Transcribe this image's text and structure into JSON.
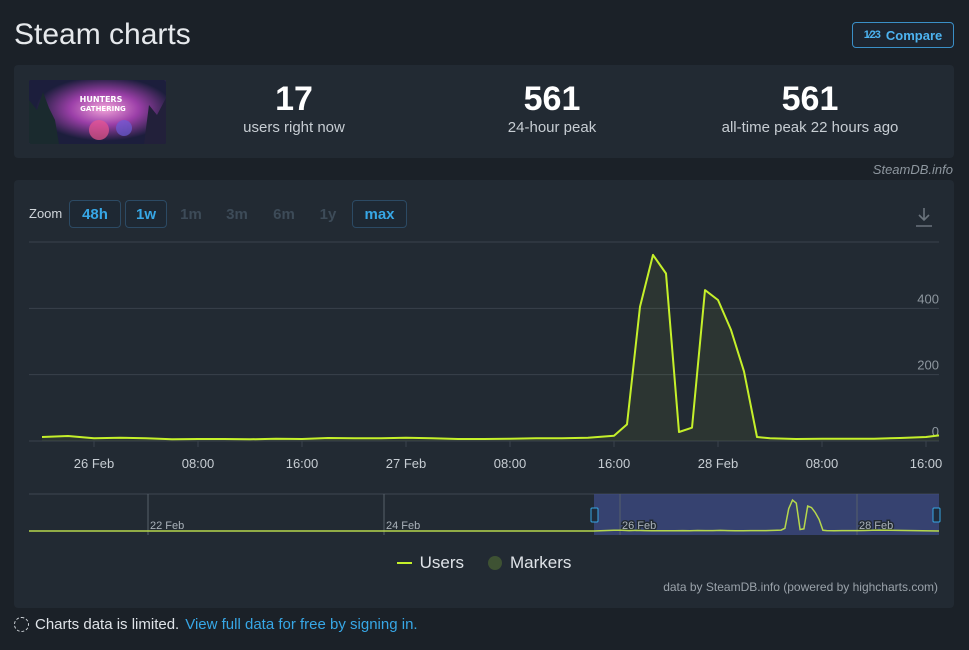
{
  "page": {
    "title": "Steam charts",
    "compare_icon": "1⁄23",
    "compare_label": "Compare"
  },
  "stats": [
    {
      "value": "17",
      "label": "users right now"
    },
    {
      "value": "561",
      "label": "24-hour peak"
    },
    {
      "value": "561",
      "label": "all-time peak 22 hours ago"
    }
  ],
  "source_note": "SteamDB.info",
  "zoom": {
    "label": "Zoom",
    "buttons": [
      {
        "label": "48h",
        "active": true
      },
      {
        "label": "1w",
        "active": true
      },
      {
        "label": "1m",
        "active": false
      },
      {
        "label": "3m",
        "active": false
      },
      {
        "label": "6m",
        "active": false
      },
      {
        "label": "1y",
        "active": false
      },
      {
        "label": "max",
        "active": true
      }
    ]
  },
  "legend": {
    "users": "Users",
    "markers": "Markers"
  },
  "credits": "data by SteamDB.info (powered by highcharts.com)",
  "footer": {
    "text": "Charts data is limited.",
    "link": "View full data for free by signing in."
  },
  "colors": {
    "line": "#c5f02a",
    "accent": "#37a7e6",
    "background": "#1b2128",
    "panel": "#222a33"
  },
  "chart_data": {
    "type": "line",
    "series": [
      {
        "name": "Users",
        "x": [
          "25 Feb 20:00",
          "25 Feb 22:00",
          "26 Feb 00:00",
          "26 Feb 02:00",
          "26 Feb 04:00",
          "26 Feb 06:00",
          "26 Feb 08:00",
          "26 Feb 10:00",
          "26 Feb 12:00",
          "26 Feb 14:00",
          "26 Feb 16:00",
          "26 Feb 18:00",
          "26 Feb 20:00",
          "26 Feb 22:00",
          "27 Feb 00:00",
          "27 Feb 02:00",
          "27 Feb 04:00",
          "27 Feb 06:00",
          "27 Feb 08:00",
          "27 Feb 10:00",
          "27 Feb 12:00",
          "27 Feb 14:00",
          "27 Feb 16:00",
          "27 Feb 17:00",
          "27 Feb 18:00",
          "27 Feb 19:00",
          "27 Feb 20:00",
          "27 Feb 21:00",
          "27 Feb 22:00",
          "27 Feb 23:00",
          "28 Feb 00:00",
          "28 Feb 01:00",
          "28 Feb 02:00",
          "28 Feb 03:00",
          "28 Feb 04:00",
          "28 Feb 06:00",
          "28 Feb 08:00",
          "28 Feb 10:00",
          "28 Feb 12:00",
          "28 Feb 14:00",
          "28 Feb 16:00",
          "28 Feb 17:00"
        ],
        "values": [
          12,
          15,
          8,
          10,
          8,
          5,
          6,
          6,
          5,
          7,
          6,
          9,
          8,
          8,
          10,
          8,
          6,
          6,
          7,
          8,
          8,
          10,
          16,
          50,
          405,
          561,
          505,
          27,
          40,
          455,
          425,
          335,
          210,
          12,
          8,
          6,
          7,
          7,
          7,
          9,
          12,
          17
        ]
      }
    ],
    "x_ticks": [
      "26 Feb",
      "08:00",
      "16:00",
      "27 Feb",
      "08:00",
      "16:00",
      "28 Feb",
      "08:00",
      "16:00"
    ],
    "y_ticks": [
      "0",
      "200",
      "400"
    ],
    "ylim": [
      0,
      600
    ],
    "grid": true,
    "navigator_labels": [
      "22 Feb",
      "24 Feb",
      "26 Feb",
      "28 Feb"
    ],
    "legend_position": "bottom-center"
  }
}
